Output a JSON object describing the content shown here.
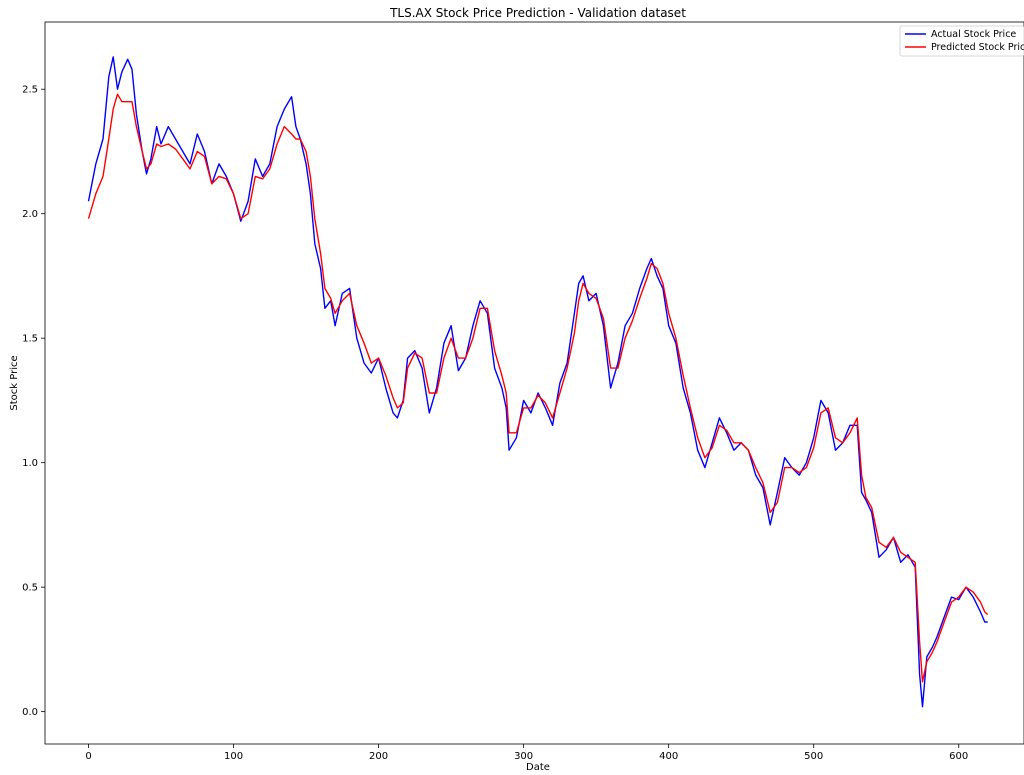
{
  "chart_data": {
    "type": "line",
    "title": "TLS.AX Stock Price Prediction - Validation dataset",
    "xlabel": "Date",
    "ylabel": "Stock Price",
    "xlim": [
      -30,
      645
    ],
    "ylim": [
      -0.13,
      2.77
    ],
    "xticks": [
      0,
      100,
      200,
      300,
      400,
      500,
      600
    ],
    "yticks": [
      0.0,
      0.5,
      1.0,
      1.5,
      2.0,
      2.5
    ],
    "grid": false,
    "legend_position": "top-right",
    "series": [
      {
        "name": "Actual Stock Price",
        "color": "#0000ff",
        "x": [
          0,
          5,
          10,
          14,
          17,
          20,
          23,
          27,
          30,
          33,
          37,
          40,
          43,
          47,
          50,
          55,
          60,
          65,
          70,
          75,
          80,
          85,
          90,
          95,
          100,
          105,
          110,
          115,
          120,
          125,
          130,
          135,
          140,
          143,
          146,
          150,
          153,
          156,
          160,
          163,
          167,
          170,
          175,
          180,
          185,
          190,
          195,
          200,
          205,
          210,
          213,
          217,
          220,
          225,
          230,
          235,
          240,
          245,
          250,
          255,
          260,
          265,
          270,
          275,
          280,
          285,
          288,
          290,
          295,
          300,
          305,
          310,
          315,
          320,
          325,
          330,
          335,
          338,
          341,
          345,
          350,
          355,
          360,
          365,
          370,
          375,
          380,
          385,
          388,
          392,
          396,
          400,
          405,
          410,
          415,
          420,
          425,
          430,
          435,
          440,
          445,
          450,
          455,
          460,
          465,
          470,
          475,
          480,
          485,
          490,
          495,
          500,
          505,
          510,
          515,
          520,
          525,
          530,
          533,
          536,
          540,
          545,
          550,
          555,
          560,
          565,
          570,
          573,
          575,
          578,
          582,
          585,
          590,
          595,
          600,
          605,
          610,
          615,
          618,
          620
        ],
        "y": [
          2.05,
          2.2,
          2.3,
          2.55,
          2.63,
          2.5,
          2.57,
          2.62,
          2.58,
          2.4,
          2.25,
          2.16,
          2.22,
          2.35,
          2.28,
          2.35,
          2.3,
          2.25,
          2.2,
          2.32,
          2.25,
          2.12,
          2.2,
          2.15,
          2.08,
          1.97,
          2.05,
          2.22,
          2.15,
          2.2,
          2.35,
          2.42,
          2.47,
          2.35,
          2.3,
          2.2,
          2.08,
          1.88,
          1.78,
          1.62,
          1.65,
          1.55,
          1.68,
          1.7,
          1.5,
          1.4,
          1.36,
          1.42,
          1.3,
          1.2,
          1.18,
          1.25,
          1.42,
          1.45,
          1.38,
          1.2,
          1.3,
          1.48,
          1.55,
          1.37,
          1.42,
          1.55,
          1.65,
          1.6,
          1.38,
          1.3,
          1.22,
          1.05,
          1.1,
          1.25,
          1.2,
          1.28,
          1.22,
          1.15,
          1.32,
          1.4,
          1.6,
          1.72,
          1.75,
          1.65,
          1.68,
          1.55,
          1.3,
          1.4,
          1.55,
          1.6,
          1.7,
          1.78,
          1.82,
          1.75,
          1.7,
          1.55,
          1.48,
          1.3,
          1.2,
          1.05,
          0.98,
          1.08,
          1.18,
          1.12,
          1.05,
          1.08,
          1.05,
          0.95,
          0.9,
          0.75,
          0.88,
          1.02,
          0.98,
          0.95,
          1.0,
          1.1,
          1.25,
          1.2,
          1.05,
          1.08,
          1.15,
          1.15,
          0.88,
          0.85,
          0.8,
          0.62,
          0.65,
          0.7,
          0.6,
          0.63,
          0.58,
          0.15,
          0.02,
          0.22,
          0.26,
          0.3,
          0.38,
          0.46,
          0.45,
          0.5,
          0.46,
          0.4,
          0.36,
          0.36
        ]
      },
      {
        "name": "Predicted Stock Price",
        "color": "#ff0000",
        "x": [
          0,
          5,
          10,
          14,
          17,
          20,
          23,
          27,
          30,
          33,
          37,
          40,
          43,
          47,
          50,
          55,
          60,
          65,
          70,
          75,
          80,
          85,
          90,
          95,
          100,
          105,
          110,
          115,
          120,
          125,
          130,
          135,
          140,
          143,
          146,
          150,
          153,
          156,
          160,
          163,
          167,
          170,
          175,
          180,
          185,
          190,
          195,
          200,
          205,
          210,
          213,
          217,
          220,
          225,
          230,
          235,
          240,
          245,
          250,
          255,
          260,
          265,
          270,
          275,
          280,
          285,
          288,
          290,
          295,
          300,
          305,
          310,
          315,
          320,
          325,
          330,
          335,
          338,
          341,
          345,
          350,
          355,
          360,
          365,
          370,
          375,
          380,
          385,
          388,
          392,
          396,
          400,
          405,
          410,
          415,
          420,
          425,
          430,
          435,
          440,
          445,
          450,
          455,
          460,
          465,
          470,
          475,
          480,
          485,
          490,
          495,
          500,
          505,
          510,
          515,
          520,
          525,
          530,
          533,
          536,
          540,
          545,
          550,
          555,
          560,
          565,
          570,
          573,
          575,
          578,
          582,
          585,
          590,
          595,
          600,
          605,
          610,
          615,
          618,
          620
        ],
        "y": [
          1.98,
          2.08,
          2.15,
          2.3,
          2.42,
          2.48,
          2.45,
          2.45,
          2.45,
          2.35,
          2.25,
          2.18,
          2.2,
          2.28,
          2.27,
          2.28,
          2.26,
          2.22,
          2.18,
          2.25,
          2.23,
          2.12,
          2.15,
          2.14,
          2.08,
          1.98,
          2.0,
          2.15,
          2.14,
          2.18,
          2.28,
          2.35,
          2.32,
          2.3,
          2.3,
          2.25,
          2.15,
          1.98,
          1.84,
          1.7,
          1.66,
          1.6,
          1.65,
          1.68,
          1.55,
          1.48,
          1.4,
          1.42,
          1.35,
          1.26,
          1.22,
          1.24,
          1.38,
          1.44,
          1.42,
          1.28,
          1.28,
          1.42,
          1.5,
          1.42,
          1.42,
          1.5,
          1.62,
          1.62,
          1.45,
          1.35,
          1.28,
          1.12,
          1.12,
          1.22,
          1.22,
          1.27,
          1.24,
          1.18,
          1.28,
          1.38,
          1.52,
          1.65,
          1.72,
          1.68,
          1.66,
          1.58,
          1.38,
          1.38,
          1.5,
          1.57,
          1.66,
          1.74,
          1.8,
          1.78,
          1.72,
          1.6,
          1.5,
          1.35,
          1.22,
          1.1,
          1.02,
          1.06,
          1.15,
          1.13,
          1.08,
          1.08,
          1.05,
          0.98,
          0.92,
          0.8,
          0.84,
          0.98,
          0.98,
          0.96,
          0.98,
          1.06,
          1.2,
          1.22,
          1.1,
          1.08,
          1.12,
          1.18,
          0.95,
          0.86,
          0.82,
          0.68,
          0.66,
          0.7,
          0.64,
          0.62,
          0.6,
          0.28,
          0.12,
          0.2,
          0.24,
          0.28,
          0.36,
          0.44,
          0.46,
          0.5,
          0.48,
          0.44,
          0.4,
          0.39
        ]
      }
    ]
  }
}
